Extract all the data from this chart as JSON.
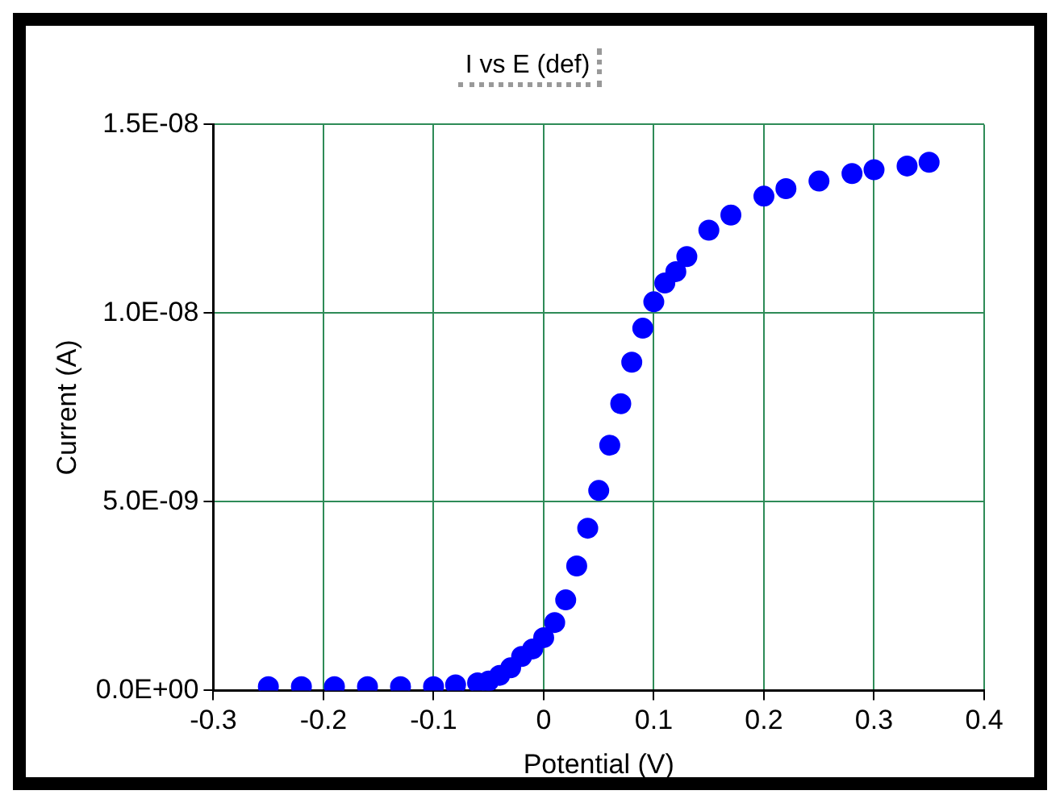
{
  "chart_data": {
    "type": "scatter",
    "title": "I vs E (def)",
    "xlabel": "Potential (V)",
    "ylabel": "Current (A)",
    "x": [
      -0.25,
      -0.22,
      -0.19,
      -0.16,
      -0.13,
      -0.1,
      -0.08,
      -0.06,
      -0.05,
      -0.04,
      -0.03,
      -0.02,
      -0.01,
      0,
      0.01,
      0.02,
      0.03,
      0.04,
      0.05,
      0.06,
      0.07,
      0.08,
      0.09,
      0.1,
      0.11,
      0.12,
      0.13,
      0.15,
      0.17,
      0.2,
      0.22,
      0.25,
      0.28,
      0.3,
      0.33,
      0.35
    ],
    "series": [
      {
        "color": "#0000ff",
        "values": [
          1e-10,
          1e-10,
          1e-10,
          1e-10,
          1e-10,
          1e-10,
          1.5e-10,
          2e-10,
          2.5e-10,
          4e-10,
          6e-10,
          9e-10,
          1.1e-09,
          1.4e-09,
          1.8e-09,
          2.4e-09,
          3.3e-09,
          4.3e-09,
          5.3e-09,
          6.5e-09,
          7.6e-09,
          8.7e-09,
          9.6e-09,
          1.03e-08,
          1.08e-08,
          1.11e-08,
          1.15e-08,
          1.22e-08,
          1.26e-08,
          1.31e-08,
          1.33e-08,
          1.35e-08,
          1.37e-08,
          1.38e-08,
          1.39e-08,
          1.4e-08
        ]
      }
    ],
    "xlim": [
      -0.3,
      0.4
    ],
    "xticks": [
      -0.3,
      -0.2,
      -0.1,
      0.0,
      0.1,
      0.2,
      0.3,
      0.4
    ],
    "ylim": [
      0,
      1.5e-08
    ],
    "yticks": [
      {
        "value": 0,
        "label": "0.0E+00"
      },
      {
        "value": 5e-09,
        "label": "5.0E-09"
      },
      {
        "value": 1e-08,
        "label": "1.0E-08"
      },
      {
        "value": 1.5e-08,
        "label": "1.5E-08"
      }
    ],
    "grid": true,
    "marker": "circle",
    "legend": false
  }
}
